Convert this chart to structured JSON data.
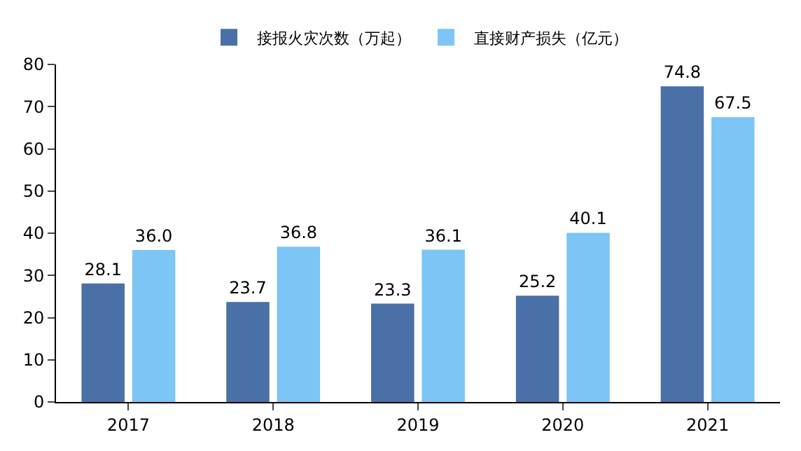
{
  "chart_data": {
    "type": "bar",
    "categories": [
      "2017",
      "2018",
      "2019",
      "2020",
      "2021"
    ],
    "series": [
      {
        "name": "接报火灾次数（万起）",
        "color": "#4a70a8",
        "values": [
          28.1,
          23.7,
          23.3,
          25.2,
          74.8
        ]
      },
      {
        "name": "直接财产损失（亿元）",
        "color": "#7cc5f5",
        "values": [
          36.0,
          36.8,
          36.1,
          40.1,
          67.5
        ]
      }
    ],
    "value_labels": [
      [
        "28.1",
        "23.7",
        "23.3",
        "25.2",
        "74.8"
      ],
      [
        "36.0",
        "36.8",
        "36.1",
        "40.1",
        "67.5"
      ]
    ],
    "ylim": [
      0,
      80
    ],
    "yticks": [
      0,
      10,
      20,
      30,
      40,
      50,
      60,
      70,
      80
    ],
    "grid": false,
    "legend": "top"
  }
}
